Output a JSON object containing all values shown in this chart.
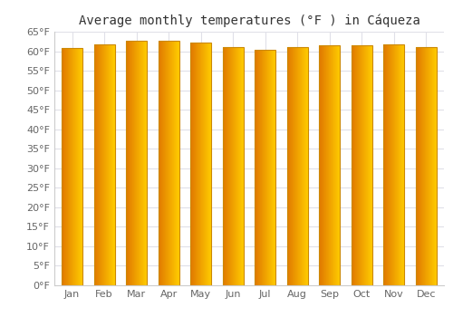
{
  "title": "Average monthly temperatures (°F ) in Cáqueza",
  "months": [
    "Jan",
    "Feb",
    "Mar",
    "Apr",
    "May",
    "Jun",
    "Jul",
    "Aug",
    "Sep",
    "Oct",
    "Nov",
    "Dec"
  ],
  "values": [
    60.8,
    61.7,
    62.6,
    62.6,
    62.1,
    61.0,
    60.4,
    61.0,
    61.5,
    61.5,
    61.7,
    61.0
  ],
  "ylim": [
    0,
    65
  ],
  "yticks": [
    0,
    5,
    10,
    15,
    20,
    25,
    30,
    35,
    40,
    45,
    50,
    55,
    60,
    65
  ],
  "ytick_labels": [
    "0°F",
    "5°F",
    "10°F",
    "15°F",
    "20°F",
    "25°F",
    "30°F",
    "35°F",
    "40°F",
    "45°F",
    "50°F",
    "55°F",
    "60°F",
    "65°F"
  ],
  "bar_color_left": "#E07800",
  "bar_color_right": "#FFCC00",
  "background_color": "#ffffff",
  "grid_color": "#e0e0e8",
  "title_fontsize": 10,
  "tick_fontsize": 8,
  "bar_width": 0.65,
  "bar_edge_color": "#cc8800",
  "bar_edge_linewidth": 0.8
}
